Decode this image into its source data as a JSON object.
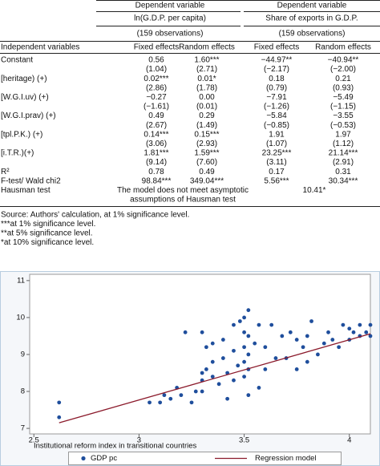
{
  "table": {
    "groups": [
      "Dependent variable",
      "Dependent variable"
    ],
    "dependents": [
      "ln(G.D.P. per capita)",
      "Share of exports in G.D.P."
    ],
    "observations": [
      "(159 observations)",
      "(159 observations)"
    ],
    "columns": [
      "Independent variables",
      "Fixed effects",
      "Random effects",
      "Fixed effects",
      "Random effects"
    ],
    "rows": [
      {
        "label": "Constant",
        "coef": [
          "0.56",
          "1.60***",
          "−44.97**",
          "−40.94**"
        ],
        "t": [
          "(1.04)",
          "(2.71)",
          "(−2.17)",
          "(−2.00)"
        ]
      },
      {
        "label": "[heritage) (+)",
        "coef": [
          "0.02***",
          "0.01*",
          "0.18",
          "0.21"
        ],
        "t": [
          "(2.86)",
          "(1.78)",
          "(0.79)",
          "(0.93)"
        ]
      },
      {
        "label": "[W.G.I.uv) (+)",
        "coef": [
          "−0.27",
          "0.00",
          "−7.91",
          "−5.49"
        ],
        "t": [
          "(−1.61)",
          "(0.01)",
          "(−1.26)",
          "(−1.15)"
        ]
      },
      {
        "label": "[W.G.I.prav) (+)",
        "coef": [
          "0.49",
          "0.29",
          "−5.84",
          "−3.55"
        ],
        "t": [
          "(2.67)",
          "(1.49)",
          "(−0.85)",
          "(−0.53)"
        ]
      },
      {
        "label": "[tpl.P.K.) (+)",
        "coef": [
          "0.14***",
          "0.15***",
          "1.91",
          "1.97"
        ],
        "t": [
          "(3.06)",
          "(2.93)",
          "(1.07)",
          "(1.12)"
        ]
      },
      {
        "label": "[i.T.R.)(+)",
        "coef": [
          "1.81***",
          "1.59***",
          "23.25***",
          "21.14***"
        ],
        "t": [
          "(9.14)",
          "(7.60)",
          "(3.11)",
          "(2.91)"
        ]
      },
      {
        "label": "R²",
        "coef": [
          "0.78",
          "0.49",
          "0.17",
          "0.31"
        ]
      },
      {
        "label": "F-test/ Wald chi2",
        "coef": [
          "98.84***",
          "349.04***",
          "5.56***",
          "30.34***"
        ]
      }
    ],
    "hausman": {
      "label": "Hausman test",
      "note": [
        "The model does not meet asymptotic",
        "assumptions of Hausman test"
      ],
      "value": "10.41*"
    }
  },
  "notes": [
    "Source: Authors' calculation, at 1% significance level.",
    "***at 1% significance level.",
    "**at 5% significance level.",
    "*at 10% significance level."
  ],
  "chart_data": {
    "type": "scatter",
    "x_label": "Institutional reform index in transitional countries",
    "xlim": [
      2.48,
      4.1
    ],
    "ylim": [
      6.85,
      11.17
    ],
    "xticks": [
      2.5,
      3,
      3.5,
      4
    ],
    "yticks": [
      7,
      8,
      9,
      10,
      11
    ],
    "series": [
      {
        "name": "GDP pc",
        "color": "#1f4e9c",
        "x": [
          2.62,
          2.62,
          3.05,
          3.1,
          3.12,
          3.15,
          3.18,
          3.2,
          3.22,
          3.25,
          3.27,
          3.3,
          3.3,
          3.3,
          3.3,
          3.32,
          3.32,
          3.35,
          3.35,
          3.35,
          3.38,
          3.4,
          3.4,
          3.42,
          3.42,
          3.45,
          3.45,
          3.45,
          3.47,
          3.48,
          3.5,
          3.5,
          3.5,
          3.5,
          3.5,
          3.52,
          3.52,
          3.52,
          3.52,
          3.52,
          3.55,
          3.57,
          3.57,
          3.6,
          3.6,
          3.63,
          3.65,
          3.68,
          3.7,
          3.72,
          3.75,
          3.75,
          3.78,
          3.8,
          3.8,
          3.82,
          3.85,
          3.88,
          3.9,
          3.92,
          3.95,
          3.97,
          4.0,
          4.0,
          4.02,
          4.05,
          4.05,
          4.08,
          4.1,
          4.1
        ],
        "values": [
          7.7,
          7.3,
          7.7,
          7.7,
          7.9,
          7.8,
          8.1,
          7.9,
          9.6,
          7.7,
          8.0,
          9.6,
          8.5,
          8.3,
          8.0,
          9.2,
          8.6,
          9.3,
          8.8,
          8.4,
          8.2,
          9.4,
          8.9,
          8.5,
          7.8,
          9.8,
          9.1,
          8.3,
          8.7,
          9.9,
          10.0,
          9.6,
          9.2,
          8.8,
          8.4,
          10.2,
          9.5,
          9.0,
          8.6,
          7.9,
          9.3,
          9.8,
          8.1,
          9.2,
          8.6,
          9.8,
          8.9,
          9.5,
          8.9,
          9.6,
          9.4,
          8.6,
          9.2,
          9.5,
          8.8,
          9.9,
          9.0,
          9.3,
          9.6,
          9.4,
          9.2,
          9.8,
          9.7,
          9.4,
          9.6,
          9.5,
          9.8,
          9.6,
          9.8,
          9.5
        ]
      },
      {
        "name": "Regression model",
        "type": "line",
        "color": "#8b1a2b",
        "x": [
          2.62,
          4.1
        ],
        "values": [
          7.15,
          9.56
        ]
      }
    ]
  }
}
